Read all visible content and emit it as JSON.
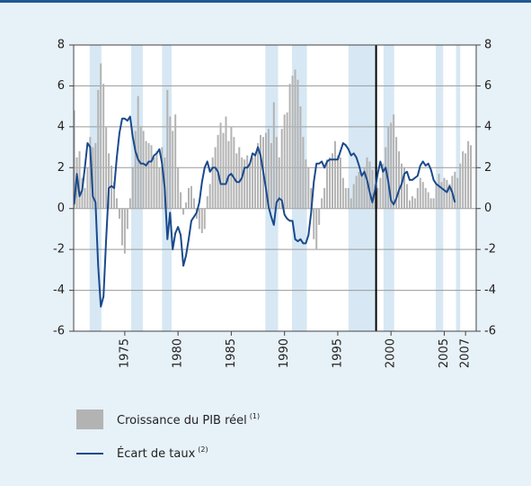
{
  "chart_data": {
    "type": "bar-line",
    "x": [
      1970.25,
      1970.5,
      1970.75,
      1971,
      1971.25,
      1971.5,
      1971.75,
      1972,
      1972.25,
      1972.5,
      1972.75,
      1973,
      1973.25,
      1973.5,
      1973.75,
      1974,
      1974.25,
      1974.5,
      1974.75,
      1975,
      1975.25,
      1975.5,
      1975.75,
      1976,
      1976.25,
      1976.5,
      1976.75,
      1977,
      1977.25,
      1977.5,
      1977.75,
      1978,
      1978.25,
      1978.5,
      1978.75,
      1979,
      1979.25,
      1979.5,
      1979.75,
      1980,
      1980.25,
      1980.5,
      1980.75,
      1981,
      1981.25,
      1981.5,
      1981.75,
      1982,
      1982.25,
      1982.5,
      1982.75,
      1983,
      1983.25,
      1983.5,
      1983.75,
      1984,
      1984.25,
      1984.5,
      1984.75,
      1985,
      1985.25,
      1985.5,
      1985.75,
      1986,
      1986.25,
      1986.5,
      1986.75,
      1987,
      1987.25,
      1987.5,
      1987.75,
      1988,
      1988.25,
      1988.5,
      1988.75,
      1989,
      1989.25,
      1989.5,
      1989.75,
      1990,
      1990.25,
      1990.5,
      1990.75,
      1991,
      1991.25,
      1991.5,
      1991.75,
      1992,
      1992.25,
      1992.5,
      1992.75,
      1993,
      1993.25,
      1993.5,
      1993.75,
      1994,
      1994.25,
      1994.5,
      1994.75,
      1995,
      1995.25,
      1995.5,
      1995.75,
      1996,
      1996.25,
      1996.5,
      1996.75,
      1997,
      1997.25,
      1997.5,
      1997.75,
      1998,
      1998.25,
      1998.5,
      1998.75,
      1999,
      1999.25,
      1999.5,
      1999.75,
      2000,
      2000.25,
      2000.5,
      2000.75,
      2001,
      2001.25,
      2001.5,
      2001.75,
      2002,
      2002.25,
      2002.5,
      2002.75,
      2003,
      2003.25,
      2003.5,
      2003.75,
      2004,
      2004.25,
      2004.5,
      2004.75,
      2005,
      2005.25,
      2005.5,
      2005.75,
      2006,
      2006.25,
      2006.5,
      2006.75,
      2007,
      2007.25,
      2007.5
    ],
    "series": [
      {
        "name": "Croissance du PIB réel",
        "note": "(1)",
        "kind": "bar",
        "color": "#b3b3b3",
        "values": [
          4.8,
          2.5,
          2.8,
          1.5,
          1.0,
          2.0,
          3.5,
          3.0,
          3.2,
          5.8,
          7.1,
          6.1,
          4.0,
          2.7,
          2.1,
          1.3,
          0.5,
          -0.5,
          -1.8,
          -2.2,
          -1.0,
          0.5,
          2.0,
          3.8,
          5.5,
          4.0,
          3.8,
          3.3,
          3.2,
          3.1,
          2.5,
          2.8,
          2.0,
          3.0,
          2.5,
          5.8,
          4.5,
          3.8,
          4.6,
          2.0,
          0.8,
          -0.3,
          0.3,
          1.0,
          1.1,
          0.5,
          -0.5,
          -1.0,
          -1.2,
          -1.0,
          0.6,
          1.2,
          2.5,
          3.0,
          3.6,
          4.2,
          3.7,
          4.5,
          3.3,
          4.0,
          3.5,
          2.7,
          3.0,
          2.5,
          2.4,
          2.6,
          2.2,
          2.5,
          2.7,
          3.2,
          3.6,
          3.5,
          3.7,
          3.9,
          3.2,
          5.2,
          3.5,
          2.5,
          3.9,
          4.6,
          4.7,
          6.1,
          6.5,
          6.8,
          6.3,
          5.0,
          3.5,
          2.4,
          2.0,
          1.0,
          -1.5,
          -2.0,
          -0.8,
          0.5,
          1.0,
          2.4,
          2.5,
          2.7,
          3.3,
          2.6,
          2.5,
          1.5,
          1.0,
          1.0,
          0.5,
          1.2,
          1.6,
          1.8,
          1.7,
          2.0,
          2.5,
          2.3,
          1.9,
          1.2,
          1.0,
          1.5,
          2.2,
          3.0,
          4.0,
          4.2,
          4.6,
          3.5,
          2.8,
          2.2,
          2.0,
          1.2,
          0.4,
          0.6,
          0.5,
          1.0,
          1.5,
          1.3,
          1.0,
          0.8,
          0.5,
          0.5,
          1.2,
          1.7,
          1.3,
          1.5,
          1.4,
          1.2,
          1.6,
          1.8,
          1.5,
          2.2,
          2.8,
          2.7,
          3.3,
          3.1
        ]
      },
      {
        "name": "Écart de taux",
        "note": "(2)",
        "kind": "line",
        "color": "#1a4a8c",
        "values": [
          0.2,
          1.7,
          0.6,
          0.9,
          2.0,
          3.2,
          3.0,
          0.6,
          0.3,
          -2.8,
          -4.8,
          -4.3,
          -1.5,
          1.0,
          1.1,
          1.0,
          2.5,
          3.7,
          4.4,
          4.4,
          4.3,
          4.5,
          3.5,
          2.8,
          2.4,
          2.2,
          2.2,
          2.1,
          2.3,
          2.3,
          2.6,
          2.7,
          2.9,
          2.2,
          1.0,
          -1.5,
          -0.2,
          -2.0,
          -1.2,
          -0.9,
          -1.3,
          -2.8,
          -2.3,
          -1.5,
          -0.6,
          -0.4,
          -0.2,
          0.3,
          1.3,
          2.0,
          2.3,
          1.8,
          2.0,
          2.0,
          1.8,
          1.2,
          1.2,
          1.2,
          1.6,
          1.7,
          1.5,
          1.3,
          1.3,
          1.5,
          2.0,
          2.0,
          2.2,
          2.7,
          2.6,
          3.0,
          2.6,
          1.8,
          1.0,
          0.1,
          -0.4,
          -0.8,
          0.3,
          0.5,
          0.4,
          -0.3,
          -0.5,
          -0.6,
          -0.6,
          -1.5,
          -1.6,
          -1.5,
          -1.7,
          -1.7,
          -1.3,
          -0.2,
          1.3,
          2.2,
          2.2,
          2.3,
          2.0,
          2.3,
          2.4,
          2.4,
          2.4,
          2.4,
          2.8,
          3.2,
          3.1,
          2.9,
          2.6,
          2.7,
          2.5,
          2.1,
          1.6,
          1.8,
          1.4,
          0.8,
          0.3,
          0.9,
          1.7,
          2.3,
          1.8,
          2.0,
          1.3,
          0.4,
          0.2,
          0.5,
          0.9,
          1.2,
          1.7,
          1.8,
          1.4,
          1.4,
          1.5,
          1.6,
          2.1,
          2.3,
          2.1,
          2.2,
          1.9,
          1.4,
          1.2,
          1.1,
          1.0,
          0.9,
          0.8,
          1.1,
          0.8,
          0.3,
          null,
          null,
          null,
          null,
          null,
          null
        ]
      }
    ],
    "bands": [
      [
        1971.7,
        1972.8
      ],
      [
        1975.6,
        1976.7
      ],
      [
        1978.5,
        1979.4
      ],
      [
        1988.2,
        1989.4
      ],
      [
        1990.7,
        1992.1
      ],
      [
        1996.0,
        1998.5
      ],
      [
        1999.3,
        2000.3
      ],
      [
        2004.2,
        2004.9
      ],
      [
        2006.1,
        2006.5
      ]
    ],
    "band_color": "#d7e8f4",
    "vline": 1998.6,
    "xlim": [
      1970.2,
      2008
    ],
    "xticks": [
      1975,
      1980,
      1985,
      1990,
      1995,
      2000,
      2005,
      2007
    ],
    "ylim": [
      -6,
      8
    ],
    "yticks": [
      -6,
      -4,
      -2,
      0,
      2,
      4,
      6,
      8
    ],
    "y2lim": [
      -6,
      8
    ],
    "y2ticks": [
      -6,
      -4,
      -2,
      0,
      2,
      4,
      6,
      8
    ],
    "grid": true
  }
}
